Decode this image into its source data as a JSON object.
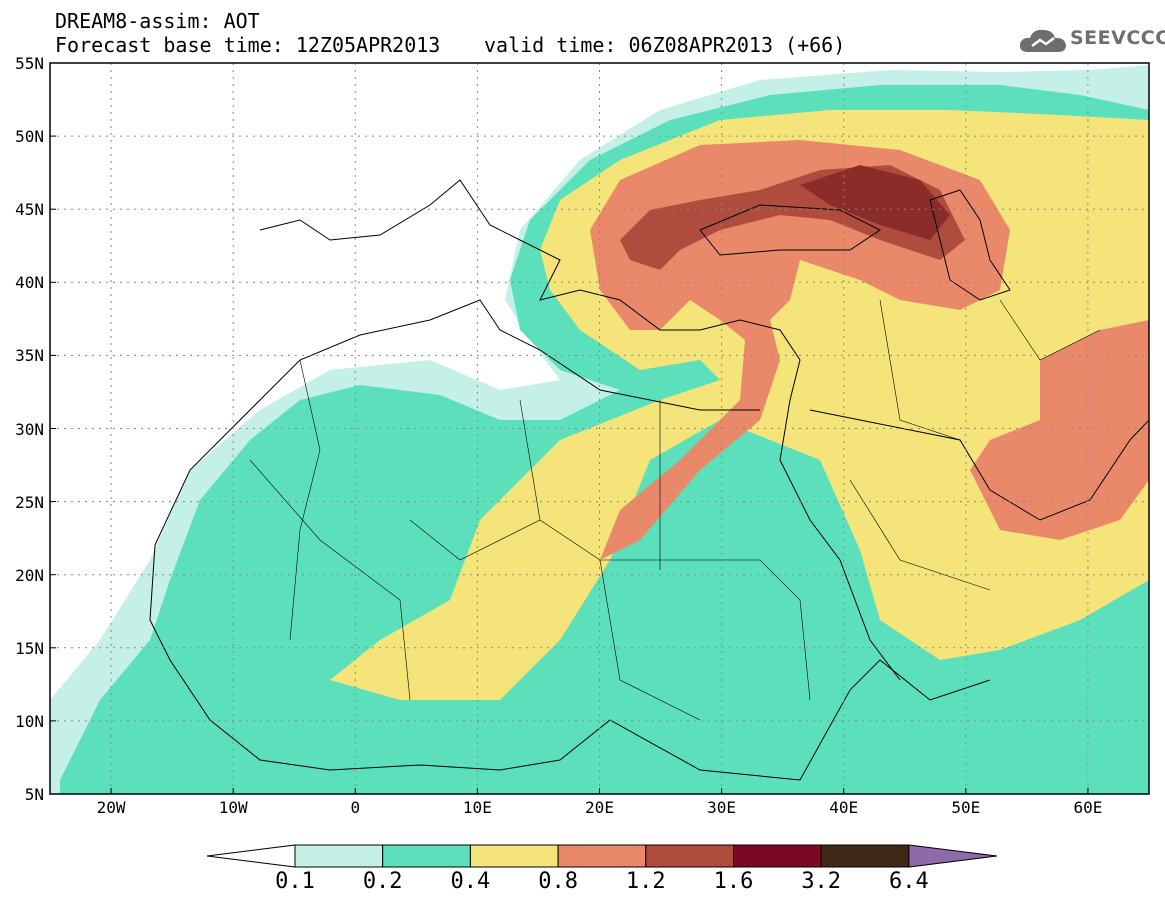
{
  "title": {
    "line1": "DREAM8-assim: AOT",
    "base": "Forecast base time: 12Z05APR2013",
    "valid": "valid time: 06Z08APR2013 (+66)"
  },
  "logo": {
    "text": "SEEVCCC",
    "icon": "cloud-icon"
  },
  "map": {
    "variable": "AOT",
    "projection": "lat-lon",
    "lon_range": [
      -25,
      65
    ],
    "lat_range": [
      5,
      55
    ],
    "gridlines": true,
    "lat_ticks": [
      "55N",
      "50N",
      "45N",
      "40N",
      "35N",
      "30N",
      "25N",
      "20N",
      "15N",
      "10N",
      "5N"
    ],
    "lon_ticks": [
      "20W",
      "10W",
      "0",
      "10E",
      "20E",
      "30E",
      "40E",
      "50E",
      "60E"
    ]
  },
  "legend": {
    "colors": [
      "#ffffff",
      "#c4f0e8",
      "#5ce0bc",
      "#f5e479",
      "#e9896a",
      "#b04c3e",
      "#7a0a23",
      "#3e2a17",
      "#8e6aa8"
    ],
    "labels": [
      "0.1",
      "0.2",
      "0.4",
      "0.8",
      "1.2",
      "1.6",
      "3.2",
      "6.4"
    ]
  }
}
